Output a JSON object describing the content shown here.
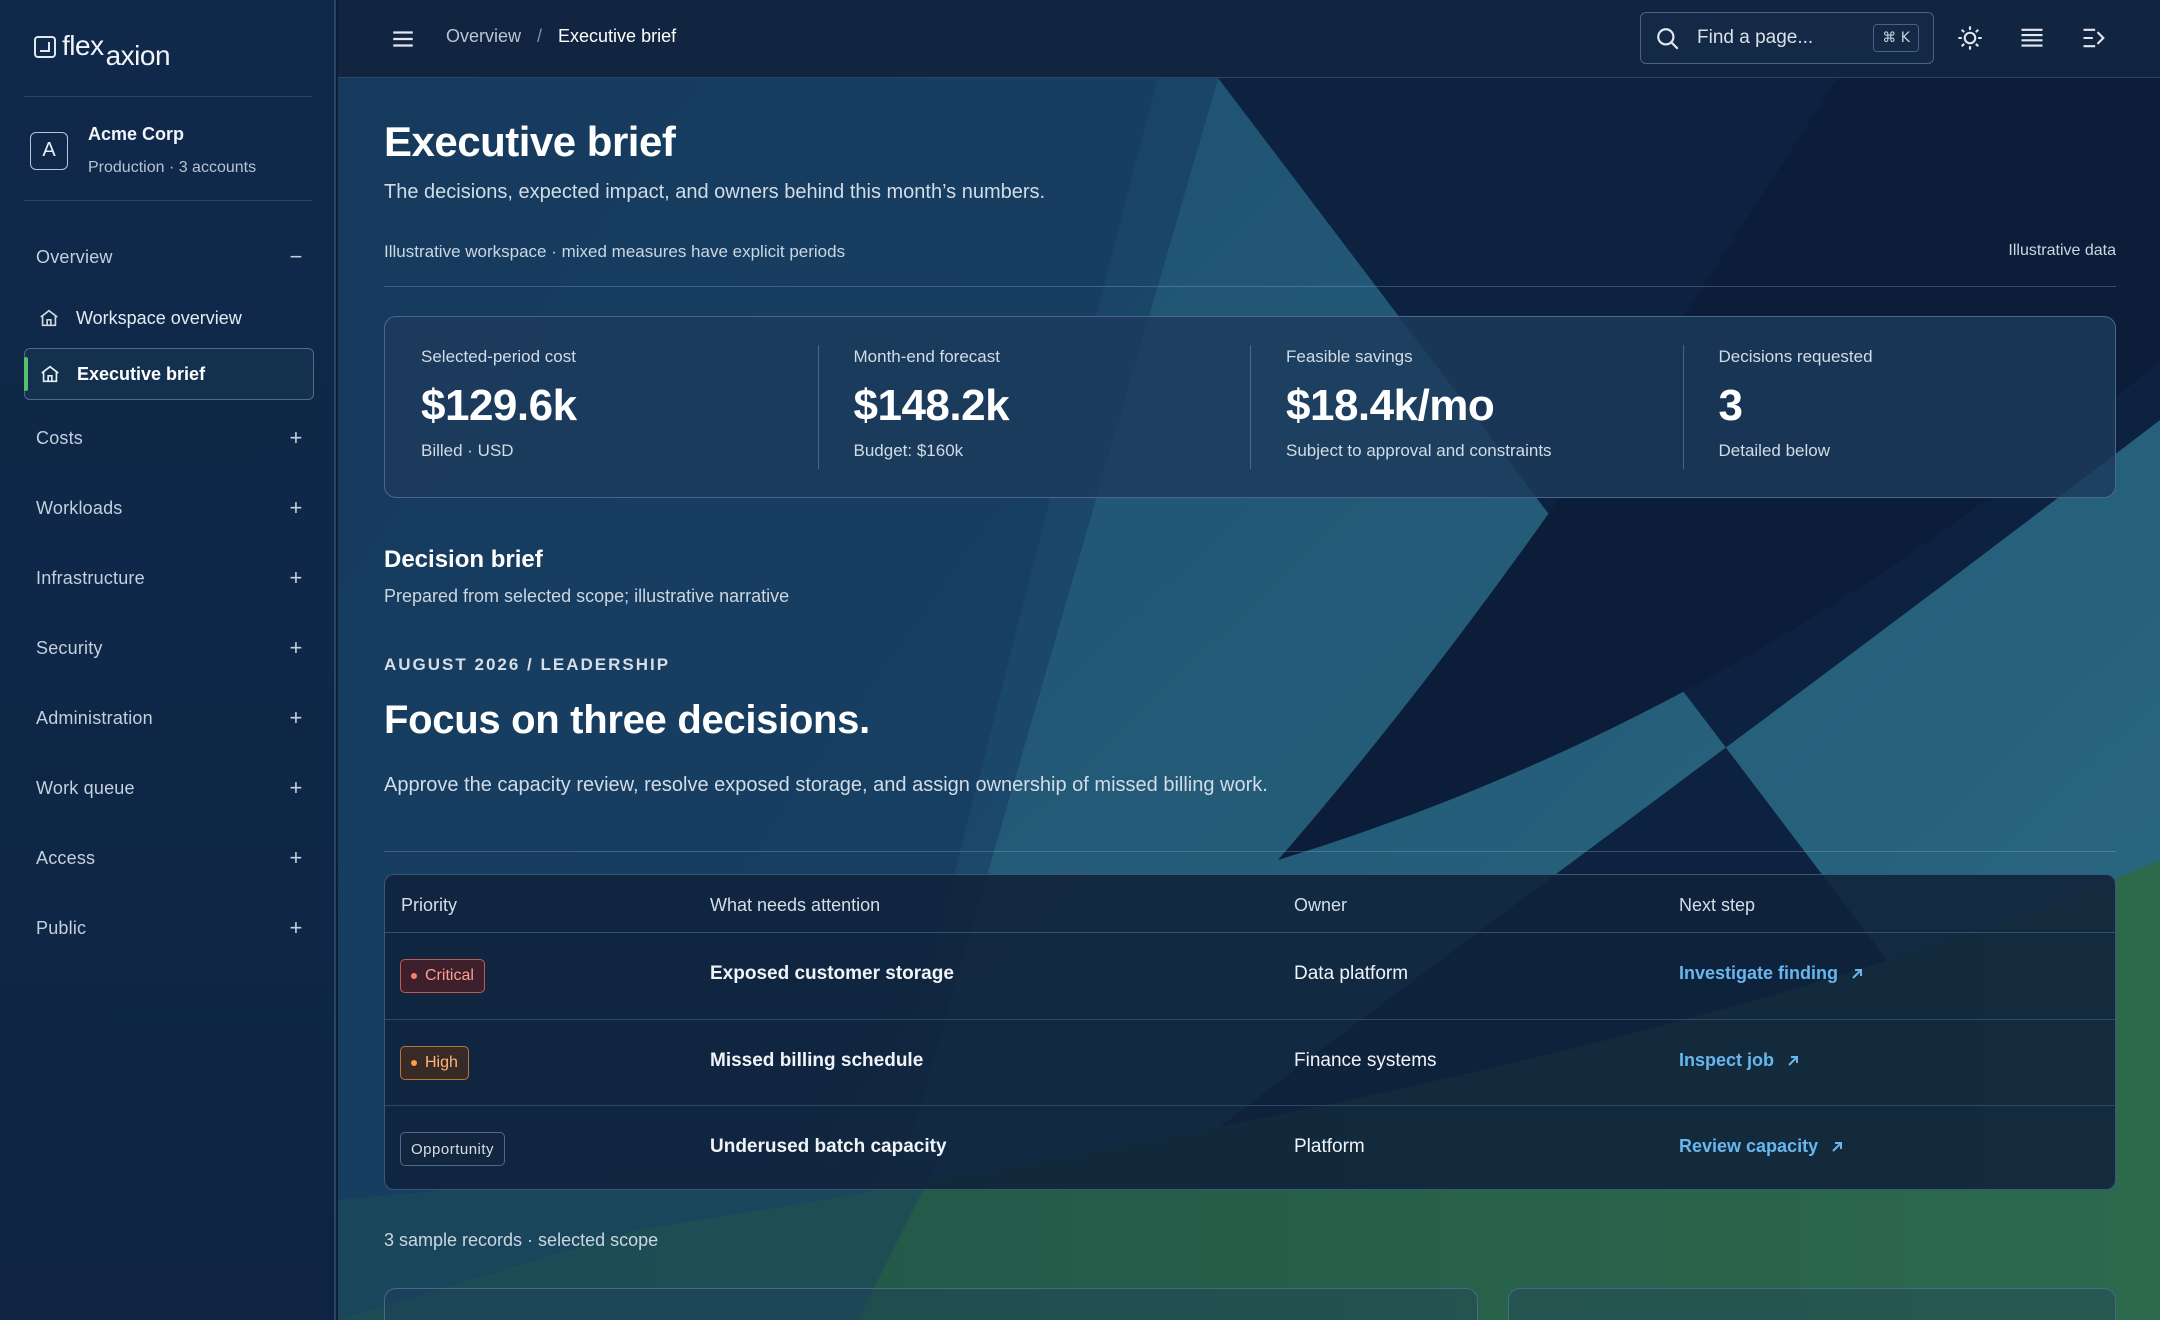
{
  "app": {
    "logo_part1": "flex",
    "logo_part2": "axion",
    "account": {
      "initial": "A",
      "name": "Acme Corp",
      "subtitle": "Production · 3 accounts"
    }
  },
  "sidebar": {
    "overview_label": "Overview",
    "overview_items": [
      {
        "label": "Workspace overview",
        "icon": "home-icon"
      },
      {
        "label": "Executive brief",
        "icon": "home-icon",
        "active": true
      }
    ],
    "sections": [
      "Costs",
      "Workloads",
      "Infrastructure",
      "Security",
      "Administration",
      "Work queue",
      "Access",
      "Public"
    ]
  },
  "topbar": {
    "breadcrumb": [
      "Overview",
      "Executive brief"
    ],
    "breadcrumb_sep": "/",
    "search_placeholder": "Find a page...",
    "search_shortcut": "⌘ K",
    "icons": [
      "theme-sun-icon",
      "list-view-icon",
      "collapse-panel-icon"
    ]
  },
  "page": {
    "title": "Executive brief",
    "subtitle": "The decisions, expected impact, and owners behind this month’s numbers.",
    "meta_left": "Illustrative workspace · mixed measures have explicit periods",
    "meta_right": "Illustrative data"
  },
  "kpis": [
    {
      "label": "Selected-period cost",
      "value": "$129.6k",
      "note": "Billed · USD"
    },
    {
      "label": "Month-end forecast",
      "value": "$148.2k",
      "note": "Budget: $160k"
    },
    {
      "label": "Feasible savings",
      "value": "$18.4k/mo",
      "note": "Subject to approval and constraints"
    },
    {
      "label": "Decisions requested",
      "value": "3",
      "note": "Detailed below"
    }
  ],
  "brief": {
    "title": "Decision brief",
    "subtitle": "Prepared from selected scope; illustrative narrative",
    "eyebrow": "AUGUST 2026 / LEADERSHIP",
    "headline": "Focus on three decisions.",
    "lede": "Approve the capacity review, resolve exposed storage, and assign ownership of missed billing work."
  },
  "table": {
    "headers": [
      "Priority",
      "What needs attention",
      "Owner",
      "Next step"
    ],
    "rows": [
      {
        "priority": "Critical",
        "item": "Exposed customer storage",
        "owner": "Data platform",
        "action": "Investigate finding"
      },
      {
        "priority": "High",
        "item": "Missed billing schedule",
        "owner": "Finance systems",
        "action": "Inspect job"
      },
      {
        "priority": "Opportunity",
        "item": "Underused batch capacity",
        "owner": "Platform",
        "action": "Review capacity"
      }
    ],
    "footer": "3 sample records · selected scope"
  },
  "colors": {
    "accent_link": "#67b7ee",
    "active_marker": "#57c26e",
    "critical": "#ff7d70",
    "high": "#ff9b4c"
  }
}
